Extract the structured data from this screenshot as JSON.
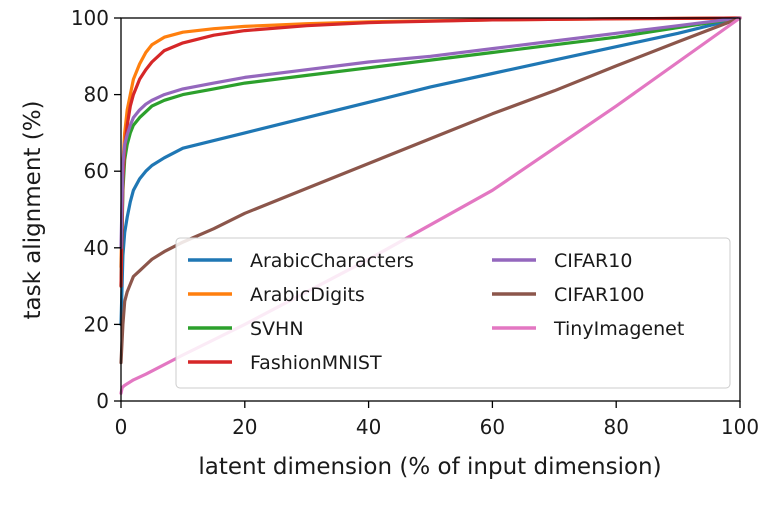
{
  "chart_data": {
    "type": "line",
    "title": "",
    "xlabel": "latent dimension (% of input dimension)",
    "ylabel": "task alignment (%)",
    "xlim": [
      0,
      100
    ],
    "ylim": [
      0,
      100
    ],
    "xticks": [
      0,
      20,
      40,
      60,
      80,
      100
    ],
    "yticks": [
      0,
      20,
      40,
      60,
      80,
      100
    ],
    "grid": false,
    "legend_position": "lower-right",
    "legend_columns": 2,
    "series": [
      {
        "name": "ArabicCharacters",
        "color": "#1f77b4",
        "x": [
          0,
          0.3,
          0.6,
          1,
          1.5,
          2,
          3,
          4,
          5,
          7,
          10,
          15,
          20,
          30,
          40,
          50,
          60,
          70,
          80,
          90,
          100
        ],
        "y": [
          20,
          38,
          44,
          48,
          52,
          55,
          58,
          60,
          61.5,
          63.5,
          66,
          68,
          70,
          74,
          78,
          82,
          85.5,
          89,
          92.5,
          96,
          100
        ]
      },
      {
        "name": "ArabicDigits",
        "color": "#ff7f0e",
        "x": [
          0,
          0.3,
          0.6,
          1,
          1.5,
          2,
          3,
          4,
          5,
          7,
          10,
          15,
          20,
          30,
          40,
          60,
          80,
          100
        ],
        "y": [
          35,
          62,
          70,
          76,
          80,
          84,
          88,
          91,
          93,
          95,
          96.3,
          97.2,
          97.8,
          98.5,
          99,
          99.5,
          99.8,
          100
        ]
      },
      {
        "name": "SVHN",
        "color": "#2ca02c",
        "x": [
          0,
          0.3,
          0.6,
          1,
          1.5,
          2,
          3,
          4,
          5,
          7,
          10,
          15,
          20,
          30,
          40,
          50,
          60,
          70,
          80,
          90,
          100
        ],
        "y": [
          30,
          55,
          63,
          67,
          70,
          72,
          74,
          75.5,
          77,
          78.5,
          80,
          81.5,
          83,
          85,
          87,
          89,
          91,
          93,
          95,
          97.5,
          100
        ]
      },
      {
        "name": "FashionMNIST",
        "color": "#d62728",
        "x": [
          0,
          0.3,
          0.6,
          1,
          1.5,
          2,
          3,
          4,
          5,
          7,
          10,
          15,
          20,
          30,
          40,
          60,
          80,
          100
        ],
        "y": [
          30,
          58,
          66,
          72,
          77,
          80,
          84,
          86.5,
          88.5,
          91.5,
          93.5,
          95.5,
          96.7,
          98,
          98.8,
          99.5,
          99.8,
          100
        ]
      },
      {
        "name": "CIFAR10",
        "color": "#9467bd",
        "x": [
          0,
          0.3,
          0.6,
          1,
          1.5,
          2,
          3,
          4,
          5,
          7,
          10,
          15,
          20,
          30,
          40,
          50,
          60,
          70,
          80,
          90,
          100
        ],
        "y": [
          40,
          62,
          67,
          69.5,
          72,
          74,
          76,
          77.5,
          78.5,
          80,
          81.5,
          83,
          84.5,
          86.5,
          88.5,
          90,
          92,
          94,
          96,
          98,
          100
        ]
      },
      {
        "name": "CIFAR100",
        "color": "#8c564b",
        "x": [
          0,
          0.3,
          0.6,
          1,
          1.5,
          2,
          3,
          4,
          5,
          7,
          10,
          15,
          20,
          30,
          40,
          50,
          60,
          70,
          80,
          90,
          100
        ],
        "y": [
          10,
          20,
          26,
          28.5,
          30.5,
          32.5,
          34,
          35.5,
          37,
          39,
          41.5,
          45,
          49,
          55.5,
          62,
          68.5,
          75,
          81,
          87.5,
          93.8,
          100
        ]
      },
      {
        "name": "TinyImagenet",
        "color": "#e377c2",
        "x": [
          0,
          0.2,
          0.5,
          1,
          2,
          4,
          10,
          20,
          40,
          60,
          80,
          100
        ],
        "y": [
          2,
          3.5,
          4,
          4.5,
          5.5,
          7,
          12,
          20,
          37,
          55,
          77,
          100
        ]
      }
    ]
  }
}
